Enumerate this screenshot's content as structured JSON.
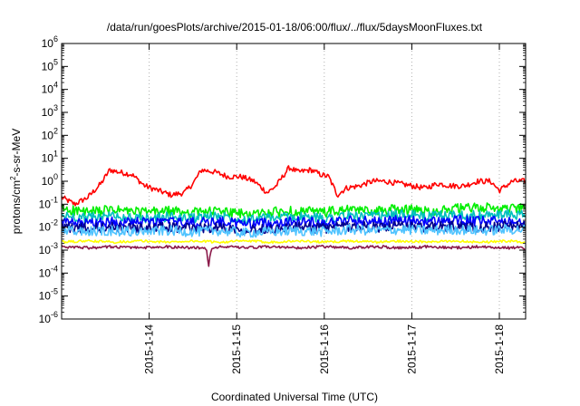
{
  "chart_data": {
    "type": "line",
    "title": "/data/run/goesPlots/archive/2015-01-18/06:00/flux/../flux/5daysMoonFluxes.txt",
    "xlabel": "Coordinated Universal Time (UTC)",
    "ylabel_base": "protons/cm",
    "ylabel_sup": "2",
    "ylabel_rest": "-s-sr-MeV",
    "y_scale": "log",
    "ylim_exp": [
      -6,
      6
    ],
    "y_tick_base": "10",
    "y_tick_exponents": [
      "-6",
      "-5",
      "-4",
      "-3",
      "-2",
      "-1",
      "0",
      "1",
      "2",
      "3",
      "4",
      "5",
      "6"
    ],
    "xlim_days": [
      13.0,
      18.3
    ],
    "x_ticks": [
      {
        "label": "2015-1-14",
        "day": 14
      },
      {
        "label": "2015-1-15",
        "day": 15
      },
      {
        "label": "2015-1-16",
        "day": 16
      },
      {
        "label": "2015-1-17",
        "day": 17
      },
      {
        "label": "2015-1-18",
        "day": 18
      }
    ],
    "grid": {
      "vertical": true,
      "horizontal": false
    },
    "legend": "none",
    "series": [
      {
        "color": "#ff0000",
        "day": [
          13.0,
          13.15,
          13.3,
          13.45,
          13.55,
          13.65,
          13.8,
          13.95,
          14.1,
          14.25,
          14.4,
          14.5,
          14.6,
          14.75,
          14.9,
          15.05,
          15.2,
          15.35,
          15.45,
          15.6,
          15.7,
          15.85,
          15.95,
          16.05,
          16.15,
          16.25,
          16.4,
          16.55,
          16.7,
          16.85,
          17.0,
          17.15,
          17.3,
          17.45,
          17.6,
          17.75,
          17.9,
          18.0,
          18.15,
          18.3
        ],
        "log10": [
          -0.7,
          -1.0,
          -0.7,
          -0.1,
          0.5,
          0.4,
          0.3,
          -0.2,
          -0.4,
          -0.6,
          -0.5,
          -0.1,
          0.5,
          0.4,
          0.2,
          0.2,
          0.0,
          -0.5,
          -0.2,
          0.6,
          0.4,
          0.5,
          0.3,
          0.2,
          -0.6,
          -0.3,
          -0.2,
          0.0,
          0.0,
          -0.1,
          -0.2,
          -0.3,
          -0.1,
          -0.2,
          -0.2,
          0.0,
          0.0,
          -0.4,
          0.0,
          0.0
        ]
      },
      {
        "color": "#00ee00",
        "day": [
          13.0,
          13.3,
          13.6,
          13.9,
          14.2,
          14.5,
          14.8,
          15.1,
          15.4,
          15.7,
          16.0,
          16.3,
          16.6,
          16.9,
          17.2,
          17.5,
          17.8,
          18.1,
          18.3
        ],
        "log10": [
          -1.2,
          -1.35,
          -1.25,
          -1.35,
          -1.3,
          -1.35,
          -1.3,
          -1.45,
          -1.35,
          -1.3,
          -1.35,
          -1.25,
          -1.3,
          -1.2,
          -1.3,
          -1.2,
          -1.15,
          -1.2,
          -1.2
        ]
      },
      {
        "color": "#00bfbf",
        "day": [
          13.0,
          13.3,
          13.6,
          13.9,
          14.2,
          14.5,
          14.8,
          15.1,
          15.4,
          15.7,
          16.0,
          16.3,
          16.6,
          16.9,
          17.2,
          17.5,
          17.8,
          18.1,
          18.3
        ],
        "log10": [
          -1.5,
          -1.6,
          -1.5,
          -1.65,
          -1.55,
          -1.6,
          -1.5,
          -1.65,
          -1.6,
          -1.55,
          -1.6,
          -1.5,
          -1.55,
          -1.45,
          -1.55,
          -1.45,
          -1.5,
          -1.45,
          -1.5
        ]
      },
      {
        "color": "#0000ff",
        "day": [
          13.0,
          13.3,
          13.6,
          13.9,
          14.2,
          14.5,
          14.8,
          15.1,
          15.4,
          15.7,
          16.0,
          16.3,
          16.6,
          16.9,
          17.2,
          17.5,
          17.8,
          18.1,
          18.3
        ],
        "log10": [
          -1.8,
          -1.85,
          -1.75,
          -1.8,
          -1.75,
          -1.8,
          -1.75,
          -1.85,
          -1.8,
          -1.75,
          -1.8,
          -1.7,
          -1.75,
          -1.7,
          -1.75,
          -1.7,
          -1.75,
          -1.7,
          -1.7
        ]
      },
      {
        "color": "#00008b",
        "day": [
          13.0,
          13.3,
          13.6,
          13.9,
          14.2,
          14.5,
          14.8,
          15.1,
          15.4,
          15.7,
          16.0,
          16.3,
          16.6,
          16.9,
          17.2,
          17.5,
          17.8,
          18.1,
          18.3
        ],
        "log10": [
          -2.0,
          -2.05,
          -2.0,
          -2.05,
          -2.0,
          -2.05,
          -2.0,
          -2.1,
          -2.05,
          -2.0,
          -2.05,
          -1.95,
          -2.0,
          -1.95,
          -2.0,
          -1.95,
          -2.0,
          -1.95,
          -1.95
        ]
      },
      {
        "color": "#4fc3ff",
        "day": [
          13.0,
          13.3,
          13.6,
          13.9,
          14.2,
          14.5,
          14.8,
          15.1,
          15.4,
          15.7,
          16.0,
          16.3,
          16.6,
          16.9,
          17.2,
          17.5,
          17.8,
          18.1,
          18.3
        ],
        "log10": [
          -2.15,
          -2.2,
          -2.15,
          -2.2,
          -2.15,
          -2.2,
          -2.15,
          -2.25,
          -2.2,
          -2.15,
          -2.2,
          -2.1,
          -2.15,
          -2.1,
          -2.15,
          -2.1,
          -2.15,
          -2.1,
          -2.1
        ]
      },
      {
        "color": "#ffff00",
        "day": [
          13.0,
          13.3,
          13.6,
          13.9,
          14.2,
          14.5,
          14.8,
          15.1,
          15.4,
          15.7,
          16.0,
          16.3,
          16.6,
          16.9,
          17.2,
          17.5,
          17.8,
          18.1,
          18.3
        ],
        "log10": [
          -2.65,
          -2.6,
          -2.65,
          -2.6,
          -2.65,
          -2.6,
          -2.65,
          -2.6,
          -2.65,
          -2.6,
          -2.65,
          -2.6,
          -2.65,
          -2.6,
          -2.65,
          -2.6,
          -2.65,
          -2.6,
          -2.65
        ]
      },
      {
        "color": "#8b1a4a",
        "day": [
          13.0,
          13.3,
          13.6,
          13.9,
          14.2,
          14.5,
          14.65,
          14.68,
          14.71,
          14.8,
          15.1,
          15.4,
          15.7,
          16.0,
          16.3,
          16.6,
          16.9,
          17.2,
          17.5,
          17.8,
          18.1,
          18.3
        ],
        "log10": [
          -2.85,
          -2.9,
          -2.85,
          -2.9,
          -2.85,
          -2.9,
          -2.9,
          -3.65,
          -2.9,
          -2.85,
          -2.9,
          -2.85,
          -2.9,
          -2.85,
          -2.9,
          -2.85,
          -2.9,
          -2.85,
          -2.9,
          -2.85,
          -2.9,
          -2.9
        ]
      }
    ]
  }
}
